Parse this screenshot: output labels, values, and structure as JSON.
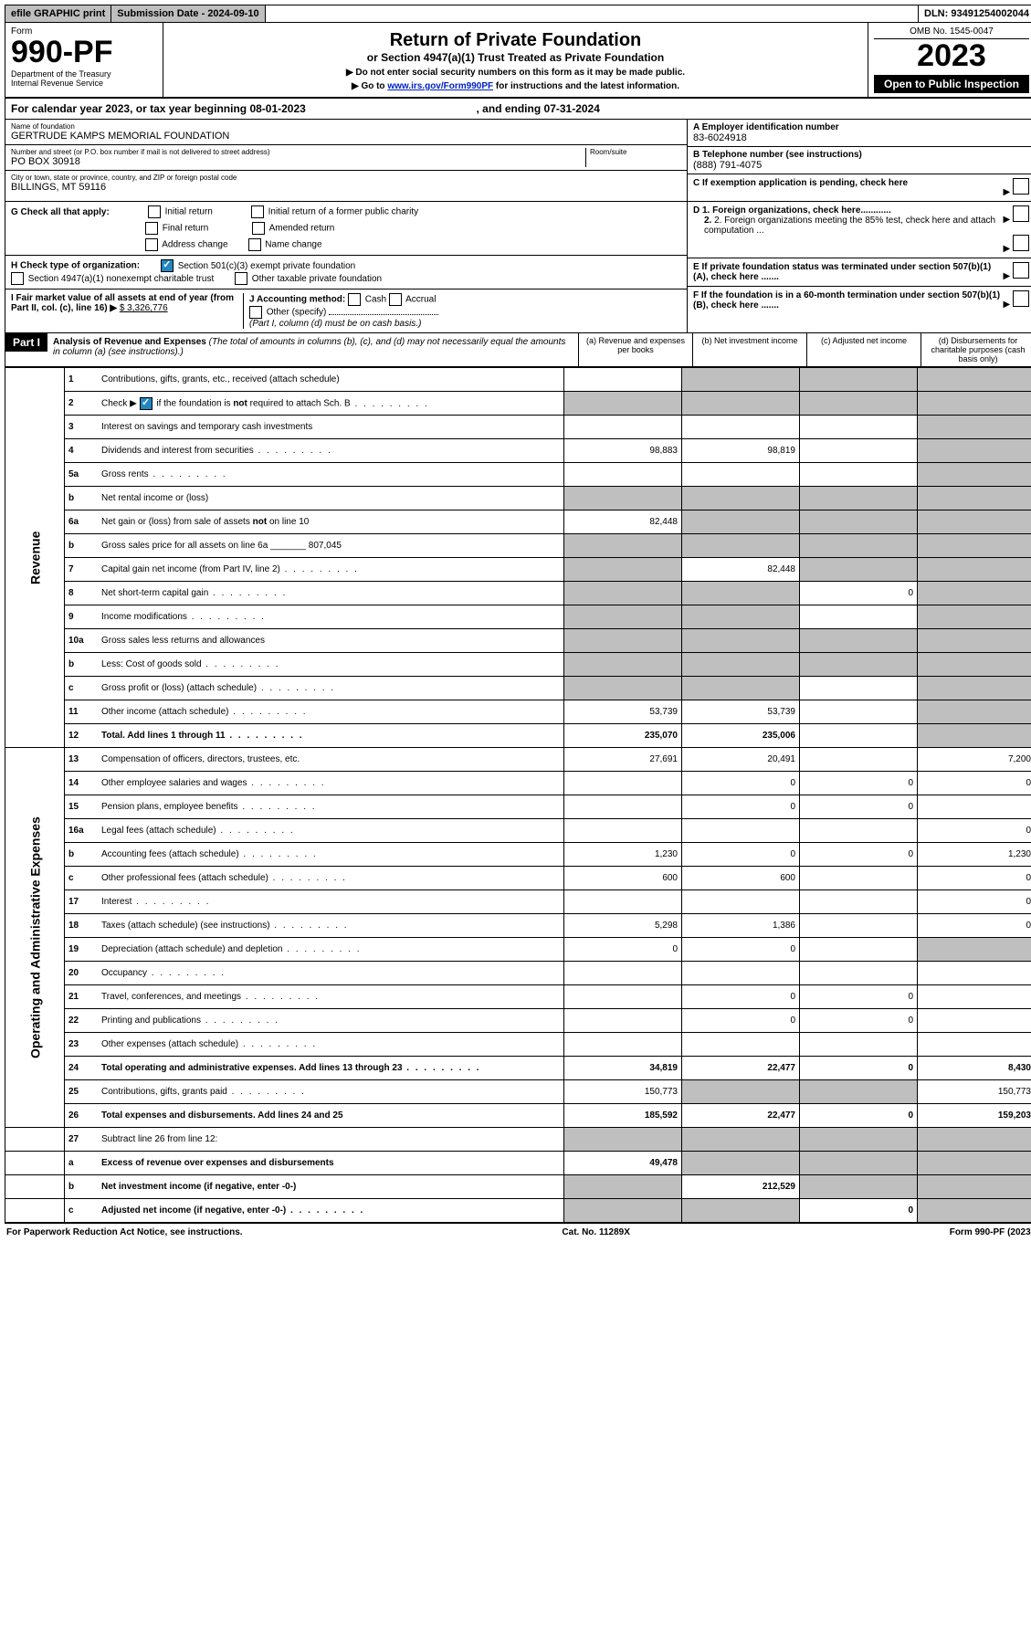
{
  "top": {
    "efile": "efile GRAPHIC print",
    "sub_label": "Submission Date - 2024-09-10",
    "dln": "DLN: 93491254002044"
  },
  "header": {
    "form_word": "Form",
    "form_num": "990-PF",
    "dept": "Department of the Treasury\nInternal Revenue Service",
    "title": "Return of Private Foundation",
    "subtitle": "or Section 4947(a)(1) Trust Treated as Private Foundation",
    "instr1": "▶ Do not enter social security numbers on this form as it may be made public.",
    "instr2_pre": "▶ Go to ",
    "instr2_link": "www.irs.gov/Form990PF",
    "instr2_post": " for instructions and the latest information.",
    "omb": "OMB No. 1545-0047",
    "year": "2023",
    "open": "Open to Public Inspection"
  },
  "cal": {
    "line": "For calendar year 2023, or tax year beginning 08-01-2023",
    "end": ", and ending 07-31-2024"
  },
  "info": {
    "name_lbl": "Name of foundation",
    "name": "GERTRUDE KAMPS MEMORIAL FOUNDATION",
    "addr_lbl": "Number and street (or P.O. box number if mail is not delivered to street address)",
    "room_lbl": "Room/suite",
    "addr": "PO BOX 30918",
    "city_lbl": "City or town, state or province, country, and ZIP or foreign postal code",
    "city": "BILLINGS, MT  59116",
    "a_lbl": "A Employer identification number",
    "a_val": "83-6024918",
    "b_lbl": "B Telephone number (see instructions)",
    "b_val": "(888) 791-4075",
    "c_lbl": "C If exemption application is pending, check here",
    "d1": "D 1. Foreign organizations, check here............",
    "d2": "2. Foreign organizations meeting the 85% test, check here and attach computation ...",
    "e_lbl": "E  If private foundation status was terminated under section 507(b)(1)(A), check here .......",
    "f_lbl": "F  If the foundation is in a 60-month termination under section 507(b)(1)(B), check here .......",
    "g_lbl": "G Check all that apply:",
    "g_opts": [
      "Initial return",
      "Final return",
      "Address change",
      "Initial return of a former public charity",
      "Amended return",
      "Name change"
    ],
    "h_lbl": "H Check type of organization:",
    "h1": "Section 501(c)(3) exempt private foundation",
    "h2": "Section 4947(a)(1) nonexempt charitable trust",
    "h3": "Other taxable private foundation",
    "i_lbl": "I Fair market value of all assets at end of year (from Part II, col. (c), line 16) ▶",
    "i_val": "$  3,326,776",
    "j_lbl": "J Accounting method:",
    "j_opts": [
      "Cash",
      "Accrual"
    ],
    "j_other": "Other (specify)",
    "j_note": "(Part I, column (d) must be on cash basis.)"
  },
  "part1": {
    "label": "Part I",
    "title": "Analysis of Revenue and Expenses",
    "title_note": "(The total of amounts in columns (b), (c), and (d) may not necessarily equal the amounts in column (a) (see instructions).)",
    "col_a": "(a)   Revenue and expenses per books",
    "col_b": "(b)   Net investment income",
    "col_c": "(c)   Adjusted net income",
    "col_d": "(d)  Disbursements for charitable purposes (cash basis only)"
  },
  "v_rev": "Revenue",
  "v_op": "Operating and Administrative Expenses",
  "rows": [
    {
      "n": "1",
      "d": "Contributions, gifts, grants, etc., received (attach schedule)",
      "a": "",
      "b": "g",
      "c": "g",
      "dd": "g"
    },
    {
      "n": "2",
      "d": "Check ▶ ☑ if the foundation is not required to attach Sch. B",
      "a": "g",
      "b": "g",
      "c": "g",
      "dd": "g",
      "dots": 1
    },
    {
      "n": "3",
      "d": "Interest on savings and temporary cash investments",
      "a": "",
      "b": "",
      "c": "",
      "dd": "g"
    },
    {
      "n": "4",
      "d": "Dividends and interest from securities",
      "a": "98,883",
      "b": "98,819",
      "c": "",
      "dd": "g",
      "dots": 1
    },
    {
      "n": "5a",
      "d": "Gross rents",
      "a": "",
      "b": "",
      "c": "",
      "dd": "g",
      "dots": 1
    },
    {
      "n": "b",
      "d": "Net rental income or (loss)",
      "a": "g",
      "b": "g",
      "c": "g",
      "dd": "g",
      "under": 1
    },
    {
      "n": "6a",
      "d": "Net gain or (loss) from sale of assets not on line 10",
      "a": "82,448",
      "b": "g",
      "c": "g",
      "dd": "g"
    },
    {
      "n": "b",
      "d": "Gross sales price for all assets on line 6a _______ 807,045",
      "a": "g",
      "b": "g",
      "c": "g",
      "dd": "g"
    },
    {
      "n": "7",
      "d": "Capital gain net income (from Part IV, line 2)",
      "a": "g",
      "b": "82,448",
      "c": "g",
      "dd": "g",
      "dots": 1
    },
    {
      "n": "8",
      "d": "Net short-term capital gain",
      "a": "g",
      "b": "g",
      "c": "0",
      "dd": "g",
      "dots": 1
    },
    {
      "n": "9",
      "d": "Income modifications",
      "a": "g",
      "b": "g",
      "c": "",
      "dd": "g",
      "dots": 1
    },
    {
      "n": "10a",
      "d": "Gross sales less returns and allowances",
      "a": "g",
      "b": "g",
      "c": "g",
      "dd": "g",
      "under": 1
    },
    {
      "n": "b",
      "d": "Less: Cost of goods sold",
      "a": "g",
      "b": "g",
      "c": "g",
      "dd": "g",
      "dots": 1,
      "under": 1
    },
    {
      "n": "c",
      "d": "Gross profit or (loss) (attach schedule)",
      "a": "g",
      "b": "g",
      "c": "",
      "dd": "g",
      "dots": 1
    },
    {
      "n": "11",
      "d": "Other income (attach schedule)",
      "a": "53,739",
      "b": "53,739",
      "c": "",
      "dd": "g",
      "dots": 1
    },
    {
      "n": "12",
      "d": "Total. Add lines 1 through 11",
      "a": "235,070",
      "b": "235,006",
      "c": "",
      "dd": "g",
      "dots": 1,
      "bold": 1
    }
  ],
  "rows2": [
    {
      "n": "13",
      "d": "Compensation of officers, directors, trustees, etc.",
      "a": "27,691",
      "b": "20,491",
      "c": "",
      "dd": "7,200"
    },
    {
      "n": "14",
      "d": "Other employee salaries and wages",
      "a": "",
      "b": "0",
      "c": "0",
      "dd": "0",
      "dots": 1
    },
    {
      "n": "15",
      "d": "Pension plans, employee benefits",
      "a": "",
      "b": "0",
      "c": "0",
      "dd": "",
      "dots": 1
    },
    {
      "n": "16a",
      "d": "Legal fees (attach schedule)",
      "a": "",
      "b": "",
      "c": "",
      "dd": "0",
      "dots": 1
    },
    {
      "n": "b",
      "d": "Accounting fees (attach schedule)",
      "a": "1,230",
      "b": "0",
      "c": "0",
      "dd": "1,230",
      "dots": 1
    },
    {
      "n": "c",
      "d": "Other professional fees (attach schedule)",
      "a": "600",
      "b": "600",
      "c": "",
      "dd": "0",
      "dots": 1
    },
    {
      "n": "17",
      "d": "Interest",
      "a": "",
      "b": "",
      "c": "",
      "dd": "0",
      "dots": 1
    },
    {
      "n": "18",
      "d": "Taxes (attach schedule) (see instructions)",
      "a": "5,298",
      "b": "1,386",
      "c": "",
      "dd": "0",
      "dots": 1
    },
    {
      "n": "19",
      "d": "Depreciation (attach schedule) and depletion",
      "a": "0",
      "b": "0",
      "c": "",
      "dd": "g",
      "dots": 1
    },
    {
      "n": "20",
      "d": "Occupancy",
      "a": "",
      "b": "",
      "c": "",
      "dd": "",
      "dots": 1
    },
    {
      "n": "21",
      "d": "Travel, conferences, and meetings",
      "a": "",
      "b": "0",
      "c": "0",
      "dd": "",
      "dots": 1
    },
    {
      "n": "22",
      "d": "Printing and publications",
      "a": "",
      "b": "0",
      "c": "0",
      "dd": "",
      "dots": 1
    },
    {
      "n": "23",
      "d": "Other expenses (attach schedule)",
      "a": "",
      "b": "",
      "c": "",
      "dd": "",
      "dots": 1
    },
    {
      "n": "24",
      "d": "Total operating and administrative expenses. Add lines 13 through 23",
      "a": "34,819",
      "b": "22,477",
      "c": "0",
      "dd": "8,430",
      "dots": 1,
      "bold": 1
    },
    {
      "n": "25",
      "d": "Contributions, gifts, grants paid",
      "a": "150,773",
      "b": "g",
      "c": "g",
      "dd": "150,773",
      "dots": 1
    },
    {
      "n": "26",
      "d": "Total expenses and disbursements. Add lines 24 and 25",
      "a": "185,592",
      "b": "22,477",
      "c": "0",
      "dd": "159,203",
      "bold": 1
    }
  ],
  "rows3": [
    {
      "n": "27",
      "d": "Subtract line 26 from line 12:",
      "a": "g",
      "b": "g",
      "c": "g",
      "dd": "g"
    },
    {
      "n": "a",
      "d": "Excess of revenue over expenses and disbursements",
      "a": "49,478",
      "b": "g",
      "c": "g",
      "dd": "g",
      "bold": 1
    },
    {
      "n": "b",
      "d": "Net investment income (if negative, enter -0-)",
      "a": "g",
      "b": "212,529",
      "c": "g",
      "dd": "g",
      "bold": 1
    },
    {
      "n": "c",
      "d": "Adjusted net income (if negative, enter -0-)",
      "a": "g",
      "b": "g",
      "c": "0",
      "dd": "g",
      "dots": 1,
      "bold": 1
    }
  ],
  "footer": {
    "left": "For Paperwork Reduction Act Notice, see instructions.",
    "center": "Cat. No. 11289X",
    "right": "Form 990-PF (2023)"
  }
}
